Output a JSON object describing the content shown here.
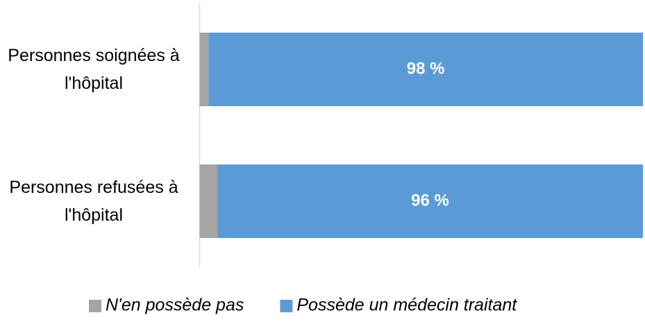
{
  "chart_data": {
    "type": "stacked-bar-horizontal",
    "categories": [
      "Personnes soignées à l'hôpital",
      "Personnes refusées à l'hôpital"
    ],
    "series": [
      {
        "name": "N'en possède pas",
        "color": "#a5a5a5",
        "values": [
          2,
          4
        ]
      },
      {
        "name": "Possède un médecin traitant",
        "color": "#5b9bd5",
        "values": [
          98,
          96
        ],
        "value_labels": [
          "98 %",
          "96 %"
        ]
      }
    ],
    "xlim": [
      0,
      100
    ],
    "legend": "bottom"
  }
}
